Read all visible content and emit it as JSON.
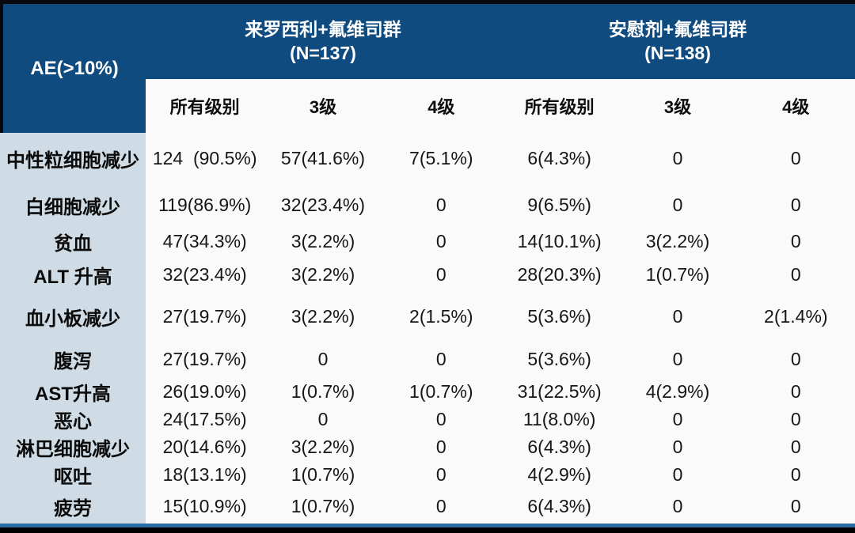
{
  "table": {
    "corner_label": "AE(>10%)",
    "groups": [
      {
        "title": "来罗西利+氟维司群",
        "n": "(N=137)"
      },
      {
        "title": "安慰剂+氟维司群",
        "n": "(N=138)"
      }
    ],
    "subheaders": [
      "所有级别",
      "3级",
      "4级",
      "所有级别",
      "3级",
      "4级"
    ],
    "rows": [
      {
        "label": "中性粒细胞减少",
        "values": [
          "124  (90.5%)",
          "57(41.6%)",
          "7(5.1%)",
          "6(4.3%)",
          "0",
          "0"
        ]
      },
      {
        "label": "白细胞减少",
        "values": [
          "119(86.9%)",
          "32(23.4%)",
          "0",
          "9(6.5%)",
          "0",
          "0"
        ]
      },
      {
        "label": "贫血",
        "values": [
          "47(34.3%)",
          "3(2.2%)",
          "0",
          "14(10.1%)",
          "3(2.2%)",
          "0"
        ]
      },
      {
        "label": "ALT 升高",
        "values": [
          "32(23.4%)",
          "3(2.2%)",
          "0",
          "28(20.3%)",
          "1(0.7%)",
          "0"
        ]
      },
      {
        "label": "血小板减少",
        "values": [
          "27(19.7%)",
          "3(2.2%)",
          "2(1.5%)",
          "5(3.6%)",
          "0",
          "2(1.4%)"
        ]
      },
      {
        "label": "腹泻",
        "values": [
          "27(19.7%)",
          "0",
          "0",
          "5(3.6%)",
          "0",
          "0"
        ]
      },
      {
        "label": "AST升高",
        "values": [
          "26(19.0%)",
          "1(0.7%)",
          "1(0.7%)",
          "31(22.5%)",
          "4(2.9%)",
          "0"
        ]
      },
      {
        "label": "恶心",
        "values": [
          "24(17.5%)",
          "0",
          "0",
          "11(8.0%)",
          "0",
          "0"
        ]
      },
      {
        "label": "淋巴细胞减少",
        "values": [
          "20(14.6%)",
          "3(2.2%)",
          "0",
          "6(4.3%)",
          "0",
          "0"
        ]
      },
      {
        "label": "呕吐",
        "values": [
          "18(13.1%)",
          "1(0.7%)",
          "0",
          "4(2.9%)",
          "0",
          "0"
        ]
      },
      {
        "label": "疲劳",
        "values": [
          "15(10.9%)",
          "1(0.7%)",
          "0",
          "6(4.3%)",
          "0",
          "0"
        ]
      }
    ]
  },
  "chart_data": {
    "type": "table",
    "title": "AE(>10%)",
    "column_groups": [
      {
        "label": "来罗西利+氟维司群 (N=137)",
        "columns": [
          "所有级别",
          "3级",
          "4级"
        ]
      },
      {
        "label": "安慰剂+氟维司群 (N=138)",
        "columns": [
          "所有级别",
          "3级",
          "4级"
        ]
      }
    ],
    "rows": [
      [
        "中性粒细胞减少",
        "124 (90.5%)",
        "57(41.6%)",
        "7(5.1%)",
        "6(4.3%)",
        "0",
        "0"
      ],
      [
        "白细胞减少",
        "119(86.9%)",
        "32(23.4%)",
        "0",
        "9(6.5%)",
        "0",
        "0"
      ],
      [
        "贫血",
        "47(34.3%)",
        "3(2.2%)",
        "0",
        "14(10.1%)",
        "3(2.2%)",
        "0"
      ],
      [
        "ALT 升高",
        "32(23.4%)",
        "3(2.2%)",
        "0",
        "28(20.3%)",
        "1(0.7%)",
        "0"
      ],
      [
        "血小板减少",
        "27(19.7%)",
        "3(2.2%)",
        "2(1.5%)",
        "5(3.6%)",
        "0",
        "2(1.4%)"
      ],
      [
        "腹泻",
        "27(19.7%)",
        "0",
        "0",
        "5(3.6%)",
        "0",
        "0"
      ],
      [
        "AST升高",
        "26(19.0%)",
        "1(0.7%)",
        "1(0.7%)",
        "31(22.5%)",
        "4(2.9%)",
        "0"
      ],
      [
        "恶心",
        "24(17.5%)",
        "0",
        "0",
        "11(8.0%)",
        "0",
        "0"
      ],
      [
        "淋巴细胞减少",
        "20(14.6%)",
        "3(2.2%)",
        "0",
        "6(4.3%)",
        "0",
        "0"
      ],
      [
        "呕吐",
        "18(13.1%)",
        "1(0.7%)",
        "0",
        "4(2.9%)",
        "0",
        "0"
      ],
      [
        "疲劳",
        "15(10.9%)",
        "1(0.7%)",
        "0",
        "6(4.3%)",
        "0",
        "0"
      ]
    ]
  },
  "colors": {
    "header-blue": "#0f4b7e",
    "label-bg": "#cfdce5",
    "body-bg": "#fafafa",
    "frame-dark": "#07090d",
    "accent-line": "#2a6da6"
  }
}
